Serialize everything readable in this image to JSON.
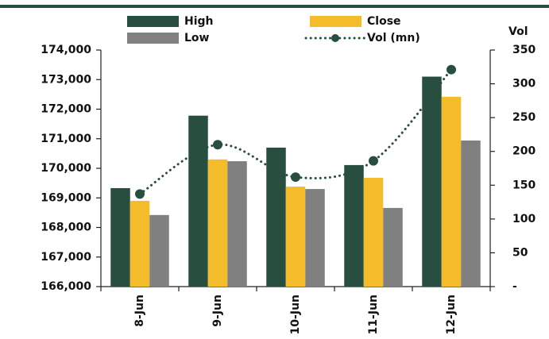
{
  "chart_data": {
    "type": "bar_line",
    "categories": [
      "8-Jun",
      "9-Jun",
      "10-Jun",
      "11-Jun",
      "12-Jun"
    ],
    "series": [
      {
        "name": "High",
        "color": "#274e3f",
        "values": [
          169330,
          171780,
          170700,
          170110,
          173100
        ]
      },
      {
        "name": "Close",
        "color": "#f4bb2a",
        "values": [
          168900,
          170300,
          169380,
          169680,
          172420
        ]
      },
      {
        "name": "Low",
        "color": "#808080",
        "values": [
          168420,
          170240,
          169300,
          168660,
          170940
        ]
      },
      {
        "name": "Vol (mn)",
        "color": "#274e3f",
        "axis": "y2",
        "line": "dotted",
        "values": [
          137,
          210,
          162,
          186,
          321
        ]
      }
    ],
    "ylim": [
      166000,
      174000
    ],
    "yticks": [
      {
        "value": 166000,
        "label": "166,000"
      },
      {
        "value": 167000,
        "label": "167,000"
      },
      {
        "value": 168000,
        "label": "168,000"
      },
      {
        "value": 169000,
        "label": "169,000"
      },
      {
        "value": 170000,
        "label": "170,000"
      },
      {
        "value": 171000,
        "label": "171,000"
      },
      {
        "value": 172000,
        "label": "172,000"
      },
      {
        "value": 173000,
        "label": "173,000"
      },
      {
        "value": 174000,
        "label": "174,000"
      }
    ],
    "y2label": "Vol",
    "y2lim": [
      0,
      350
    ],
    "y2ticks": [
      {
        "value": 0,
        "label": "-"
      },
      50,
      100,
      150,
      200,
      250,
      300,
      350
    ]
  }
}
